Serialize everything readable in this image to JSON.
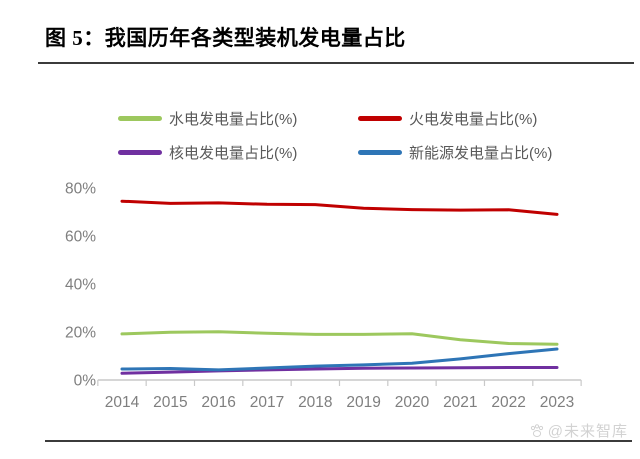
{
  "header": {
    "title": "图 5：我国历年各类型装机发电量占比"
  },
  "watermark": {
    "text": "@未来智库",
    "icon": "paw-icon"
  },
  "colors": {
    "separator": "#3b3b3b",
    "axis_line": "#c9c9c9",
    "axis_text": "#7f7f7f",
    "legend_text": "#595959",
    "watermark_text": "#d2d2d2"
  },
  "chart_data": {
    "type": "line",
    "title": "图 5：我国历年各类型装机发电量占比",
    "categories": [
      "2014",
      "2015",
      "2016",
      "2017",
      "2018",
      "2019",
      "2020",
      "2021",
      "2022",
      "2023"
    ],
    "series": [
      {
        "name": "水电发电量占比(%)",
        "color": "#9DC85E",
        "values": [
          19.2,
          19.9,
          20.1,
          19.5,
          19.0,
          19.0,
          19.3,
          16.8,
          15.2,
          14.9
        ]
      },
      {
        "name": "火电发电量占比(%)",
        "color": "#C00000",
        "values": [
          74.5,
          73.6,
          73.8,
          73.2,
          73.1,
          71.6,
          71.0,
          70.8,
          70.9,
          69.0
        ]
      },
      {
        "name": "核电发电量占比(%)",
        "color": "#7030A0",
        "values": [
          2.8,
          3.3,
          3.8,
          4.2,
          4.6,
          4.9,
          5.0,
          5.1,
          5.2,
          5.2
        ]
      },
      {
        "name": "新能源发电量占比(%)",
        "color": "#2E75B6",
        "values": [
          4.6,
          4.8,
          4.2,
          5.0,
          5.8,
          6.3,
          7.0,
          8.8,
          11.0,
          12.9
        ]
      }
    ],
    "ylim": [
      0,
      80
    ],
    "ytick_labels": [
      "0%",
      "20%",
      "40%",
      "60%",
      "80%"
    ],
    "xlabel": "",
    "ylabel": "",
    "grid": false,
    "legend_position": "top"
  }
}
